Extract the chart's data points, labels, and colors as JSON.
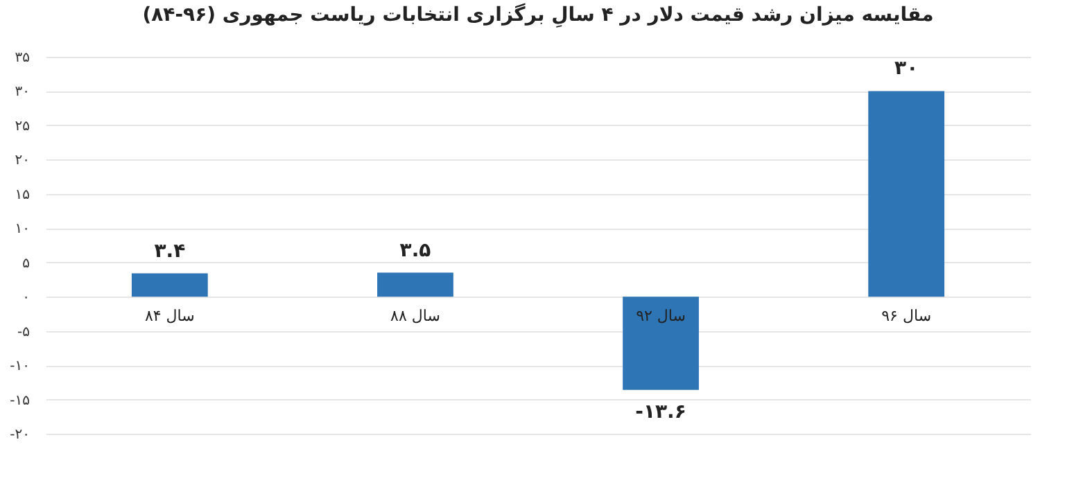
{
  "chart_data": {
    "type": "bar",
    "title": "مقایسه میزان رشد قیمت دلار در ۴ سالِ برگزاری انتخابات ریاست جمهوری (۹۶-۸۴)",
    "categories": [
      "سال ۸۴",
      "سال ۸۸",
      "سال ۹۲",
      "سال ۹۶"
    ],
    "values": [
      3.4,
      3.5,
      -13.6,
      30
    ],
    "value_labels": [
      "۳.۴",
      "۳.۵",
      "-۱۳.۶",
      "۳۰"
    ],
    "color": "#2e75b6",
    "ylim": [
      -20,
      35
    ],
    "yticks": [
      {
        "value": -20,
        "label": "-۲۰"
      },
      {
        "value": -15,
        "label": "-۱۵"
      },
      {
        "value": -10,
        "label": "-۱۰"
      },
      {
        "value": -5,
        "label": "-۵"
      },
      {
        "value": 0,
        "label": "۰"
      },
      {
        "value": 5,
        "label": "۵"
      },
      {
        "value": 10,
        "label": "۱۰"
      },
      {
        "value": 15,
        "label": "۱۵"
      },
      {
        "value": 20,
        "label": "۲۰"
      },
      {
        "value": 25,
        "label": "۲۵"
      },
      {
        "value": 30,
        "label": "۳۰"
      },
      {
        "value": 35,
        "label": "۳۵"
      }
    ],
    "grid": "y"
  }
}
